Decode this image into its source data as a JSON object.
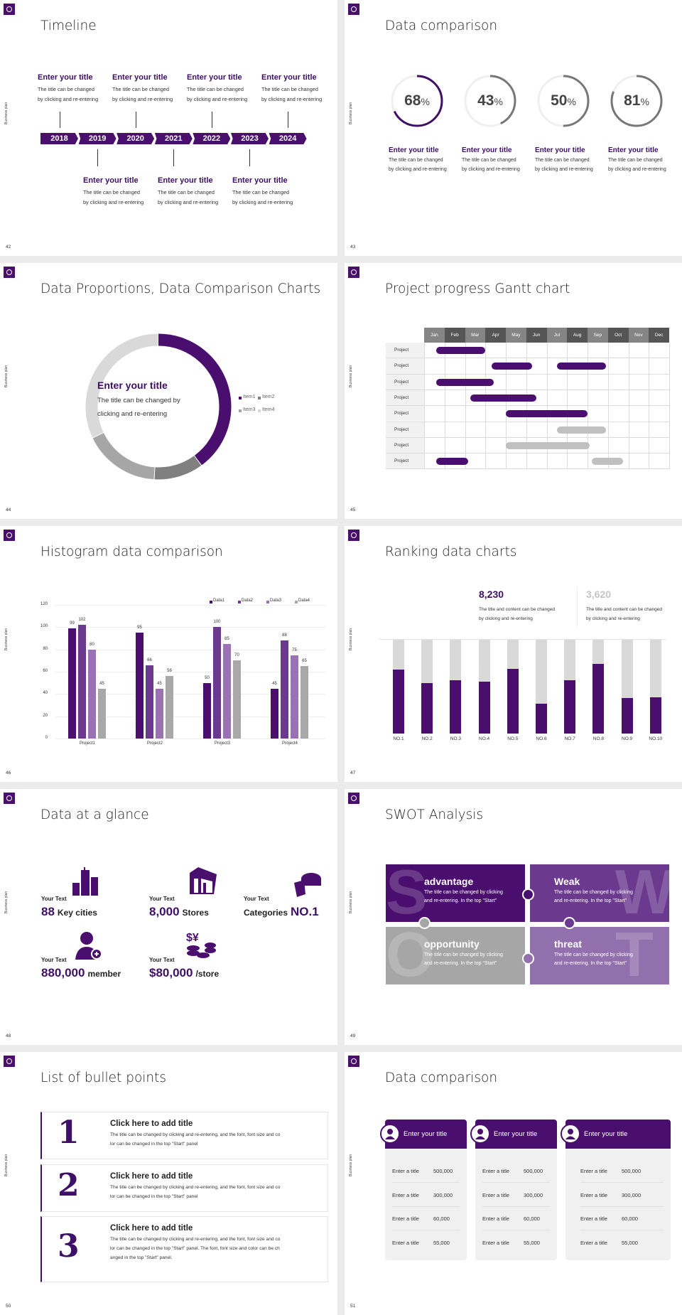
{
  "common": {
    "side_label": "Business plan"
  },
  "colors": {
    "brand": "#4a0e6e",
    "brand2": "#6b3a8f",
    "brand3": "#9a72b3",
    "gray": "#a8a8a8",
    "light": "#d9d9d9"
  },
  "slides": {
    "s42": {
      "page": "42",
      "title": "Timeline",
      "years": [
        "2018",
        "2019",
        "2020",
        "2021",
        "2022",
        "2023",
        "2024"
      ],
      "top_events": [
        {
          "title": "Enter your title",
          "line1": "The title can be changed",
          "line2": "by clicking and re-entering"
        },
        {
          "title": "Enter your title",
          "line1": "The title can be changed",
          "line2": "by clicking and re-entering"
        },
        {
          "title": "Enter your title",
          "line1": "The title can be changed",
          "line2": "by clicking and re-entering"
        },
        {
          "title": "Enter your title",
          "line1": "The title can be changed",
          "line2": "by clicking and re-entering"
        }
      ],
      "bottom_events": [
        {
          "title": "Enter your title",
          "line1": "The title can be changed",
          "line2": "by clicking and re-entering"
        },
        {
          "title": "Enter your title",
          "line1": "The title can be changed",
          "line2": "by clicking and re-entering"
        },
        {
          "title": "Enter your title",
          "line1": "The title can be changed",
          "line2": "by clicking and re-entering"
        }
      ]
    },
    "s43": {
      "page": "43",
      "title": "Data comparison",
      "unit": "%",
      "items": [
        {
          "title": "Enter your title",
          "line1": "The title can be changed",
          "line2": "by clicking and re-entering"
        },
        {
          "title": "Enter your title",
          "line1": "The title can be changed",
          "line2": "by clicking and re-entering"
        },
        {
          "title": "Enter your title",
          "line1": "The title can be changed",
          "line2": "by clicking and re-entering"
        },
        {
          "title": "Enter your title",
          "line1": "The title can be changed",
          "line2": "by clicking and re-entering"
        }
      ]
    },
    "s44": {
      "page": "44",
      "title": "Data Proportions, Data Comparison Charts",
      "center_title": "Enter your title",
      "center_line1": "The title can be changed by",
      "center_line2": "clicking and re-entering"
    },
    "s45": {
      "page": "45",
      "title": "Project progress Gantt chart"
    },
    "s46": {
      "page": "46",
      "title": "Histogram data comparison"
    },
    "s47": {
      "page": "47",
      "title": "Ranking data charts",
      "stats": [
        {
          "value": "8,230",
          "line1": "The title and content can be changed",
          "line2": "by clicking and re-entering"
        },
        {
          "value": "3,620",
          "line1": "The title and content can be changed",
          "line2": "by clicking and re-entering"
        }
      ]
    },
    "s48": {
      "page": "48",
      "title": "Data at a glance",
      "items": [
        {
          "label": "Your Text",
          "value": "88",
          "unit": "Key cities",
          "icon": "city-buildings-icon"
        },
        {
          "label": "Your Text",
          "value": "8,000",
          "unit": "Stores",
          "icon": "store-icon"
        },
        {
          "label": "Your Text",
          "prefix": "Categories",
          "value": "NO.1",
          "icon": "pie-chart-icon"
        },
        {
          "label": "Your Text",
          "value": "880,000",
          "unit": "member",
          "icon": "add-member-icon"
        },
        {
          "label": "Your Text",
          "value": "$80,000",
          "unit": "/store",
          "icon": "coins-icon"
        }
      ]
    },
    "s49": {
      "page": "49",
      "title": "SWOT Analysis",
      "quadrants": [
        {
          "letter": "S",
          "title": "advantage",
          "line1": "The title can be changed by clicking",
          "line2": "and re-entering. In the top \"Start\"",
          "color": "#4a0e6e"
        },
        {
          "letter": "W",
          "title": "Weak",
          "line1": "The title can be changed by clicking",
          "line2": "and re-entering. In the top \"Start\"",
          "color": "#6b3a8f"
        },
        {
          "letter": "O",
          "title": "opportunity",
          "line1": "The title can be changed by clicking",
          "line2": "and re-entering. In the top \"Start\"",
          "color": "#a6a6a6"
        },
        {
          "letter": "T",
          "title": "threat",
          "line1": "The title can be changed by clicking",
          "line2": "and re-entering. In the top \"Start\"",
          "color": "#9270ad"
        }
      ]
    },
    "s50": {
      "page": "50",
      "title": "List of bullet points",
      "items": [
        {
          "num": "1",
          "title": "Click here to add title",
          "lines": [
            "The title can be changed by clicking and re-entering, and the font, font size and co",
            "lor can be changed in the top \"Start\" panel"
          ]
        },
        {
          "num": "2",
          "title": "Click here to add title",
          "lines": [
            "The title can be changed by clicking and re-entering, and the font, font size and co",
            "lor can be changed in the top \"Start\" panel"
          ]
        },
        {
          "num": "3",
          "title": "Click here to add title",
          "lines": [
            "The title can be changed by clicking and re-entering, and the font, font size and co",
            "lor can be changed in the top \"Start\" panel. The font, font size and color can be ch",
            "anged in the top \"Start\" panel."
          ]
        }
      ]
    },
    "s51": {
      "page": "51",
      "title": "Data comparison",
      "cards": [
        {
          "title": "Enter your title",
          "icon": "tablet-user-icon",
          "rows": [
            {
              "label": "Enter a title",
              "value": "500,000"
            },
            {
              "label": "Enter a title",
              "value": "300,000"
            },
            {
              "label": "Enter a title",
              "value": "60,000"
            },
            {
              "label": "Enter a title",
              "value": "55,000"
            }
          ]
        },
        {
          "title": "Enter your title",
          "icon": "user-shield-icon",
          "rows": [
            {
              "label": "Enter a title",
              "value": "500,000"
            },
            {
              "label": "Enter a title",
              "value": "300,000"
            },
            {
              "label": "Enter a title",
              "value": "60,000"
            },
            {
              "label": "Enter a title",
              "value": "55,000"
            }
          ]
        },
        {
          "title": "Enter your title",
          "icon": "team-icon",
          "rows": [
            {
              "label": "Enter a title",
              "value": "500,000"
            },
            {
              "label": "Enter a title",
              "value": "300,000"
            },
            {
              "label": "Enter a title",
              "value": "60,000"
            },
            {
              "label": "Enter a title",
              "value": "55,000"
            }
          ]
        }
      ]
    }
  },
  "chart_data": [
    {
      "type": "pie",
      "variant": "progress-rings",
      "values": [
        68,
        43,
        50,
        81
      ],
      "max": 100,
      "colors": [
        "#3d0f66",
        "#777777",
        "#777777",
        "#777777"
      ]
    },
    {
      "type": "pie",
      "variant": "donut",
      "categories": [
        "Item1",
        "Item2",
        "Item3",
        "Item4"
      ],
      "values": [
        40,
        11,
        17,
        32
      ],
      "colors": [
        "#4a0e6e",
        "#808080",
        "#a6a6a6",
        "#d9d9d9"
      ],
      "legend": "right"
    },
    {
      "type": "bar",
      "variant": "gantt",
      "months": [
        "Jan",
        "Feb",
        "Mar",
        "Apr",
        "May",
        "Jun",
        "Jul",
        "Aug",
        "Sep",
        "Oct",
        "Nov",
        "Dec"
      ],
      "rows": [
        {
          "label": "Project",
          "bars": [
            {
              "start": 0.6,
              "end": 3.0,
              "status": "active"
            }
          ]
        },
        {
          "label": "Project",
          "bars": [
            {
              "start": 3.3,
              "end": 5.3,
              "status": "active"
            },
            {
              "start": 6.5,
              "end": 8.9,
              "status": "active"
            }
          ]
        },
        {
          "label": "Project",
          "bars": [
            {
              "start": 0.6,
              "end": 3.4,
              "status": "active"
            }
          ]
        },
        {
          "label": "Project",
          "bars": [
            {
              "start": 2.25,
              "end": 5.5,
              "status": "active"
            }
          ]
        },
        {
          "label": "Project",
          "bars": [
            {
              "start": 4.0,
              "end": 8.0,
              "status": "active"
            }
          ]
        },
        {
          "label": "Project",
          "bars": [
            {
              "start": 6.5,
              "end": 8.9,
              "status": "planned"
            }
          ]
        },
        {
          "label": "Project",
          "bars": [
            {
              "start": 4.0,
              "end": 8.1,
              "status": "planned"
            }
          ]
        },
        {
          "label": "Project",
          "bars": [
            {
              "start": 0.6,
              "end": 2.15,
              "status": "active"
            },
            {
              "start": 8.2,
              "end": 9.75,
              "status": "planned"
            }
          ]
        }
      ],
      "colors": {
        "active": "#4a0e6e",
        "planned": "#c0c0c0"
      }
    },
    {
      "type": "bar",
      "categories": [
        "Project1",
        "Project2",
        "Project3",
        "Project4"
      ],
      "series": [
        {
          "name": "Data1",
          "values": [
            99,
            95,
            50,
            45
          ],
          "color": "#4a0e6e"
        },
        {
          "name": "Data2",
          "values": [
            102,
            66,
            100,
            88
          ],
          "color": "#6b3a8f"
        },
        {
          "name": "Data3",
          "values": [
            80,
            45,
            85,
            75
          ],
          "color": "#9a72b3"
        },
        {
          "name": "Data4",
          "values": [
            45,
            56,
            70,
            65
          ],
          "color": "#a8a8a8"
        }
      ],
      "yticks": [
        "0",
        "20",
        "40",
        "60",
        "80",
        "100",
        "120"
      ],
      "ylim": [
        0,
        120
      ],
      "grid": true,
      "legend": "top-right"
    },
    {
      "type": "bar",
      "variant": "stacked-percent",
      "categories": [
        "NO.1",
        "NO.2",
        "NO.3",
        "NO.4",
        "NO.5",
        "NO.6",
        "NO.7",
        "NO.8",
        "NO.9",
        "NO.10"
      ],
      "values": [
        0.68,
        0.54,
        0.57,
        0.55,
        0.69,
        0.32,
        0.57,
        0.74,
        0.38,
        0.39
      ],
      "ylim": [
        0,
        1
      ],
      "colors": [
        "#4a0e6e",
        "#d9d9d9"
      ]
    }
  ]
}
